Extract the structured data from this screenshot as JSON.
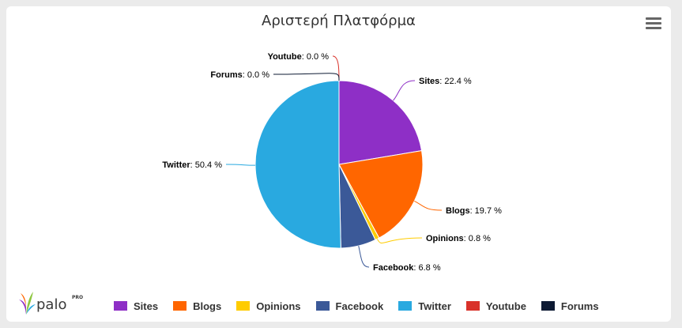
{
  "chart_data": {
    "type": "pie",
    "title": "Αριστερή Πλατφόρμα",
    "slices": [
      {
        "name": "Sites",
        "value": 22.4,
        "color": "#8e2fc6"
      },
      {
        "name": "Blogs",
        "value": 19.7,
        "color": "#ff6600"
      },
      {
        "name": "Opinions",
        "value": 0.8,
        "color": "#ffcc00"
      },
      {
        "name": "Facebook",
        "value": 6.8,
        "color": "#3b5998"
      },
      {
        "name": "Twitter",
        "value": 50.4,
        "color": "#29a9e0"
      },
      {
        "name": "Youtube",
        "value": 0.0,
        "color": "#d9322a"
      },
      {
        "name": "Forums",
        "value": 0.0,
        "color": "#0d1a33"
      }
    ],
    "data_labels": [
      "Sites: 22.4 %",
      "Blogs: 19.7 %",
      "Opinions: 0.8 %",
      "Facebook: 6.8 %",
      "Twitter: 50.4 %",
      "Youtube: 0.0 %",
      "Forums: 0.0 %"
    ],
    "legend": "bottom"
  },
  "header": {
    "menu_icon": "hamburger-menu-icon"
  },
  "logo": {
    "text": "palo",
    "badge": "PRO",
    "icon": "palo-leaf-logo"
  }
}
